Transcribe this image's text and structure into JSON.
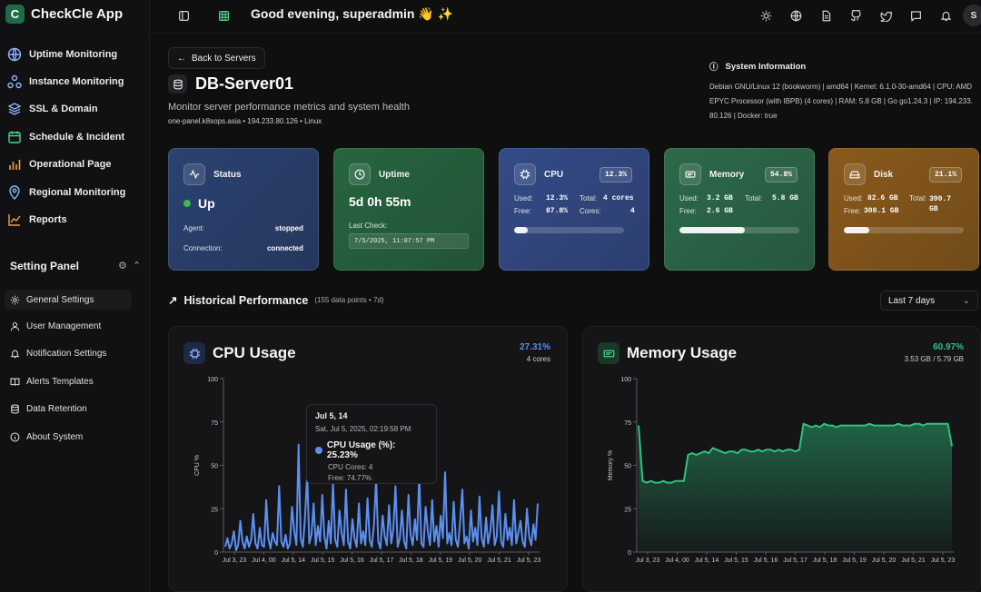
{
  "app": {
    "name": "CheckCle App",
    "logo_letter": "C"
  },
  "sidebar": {
    "items": [
      {
        "label": "Uptime Monitoring",
        "icon": "globe-icon"
      },
      {
        "label": "Instance Monitoring",
        "icon": "network-icon"
      },
      {
        "label": "SSL & Domain",
        "icon": "layers-icon"
      },
      {
        "label": "Schedule & Incident",
        "icon": "calendar-icon"
      },
      {
        "label": "Operational Page",
        "icon": "bar-chart-icon"
      },
      {
        "label": "Regional Monitoring",
        "icon": "map-pin-icon"
      },
      {
        "label": "Reports",
        "icon": "line-chart-icon"
      }
    ],
    "settings_title": "Setting Panel",
    "settings": [
      {
        "label": "General Settings",
        "icon": "gear-icon"
      },
      {
        "label": "User Management",
        "icon": "user-icon"
      },
      {
        "label": "Notification Settings",
        "icon": "bell-icon"
      },
      {
        "label": "Alerts Templates",
        "icon": "book-icon"
      },
      {
        "label": "Data Retention",
        "icon": "database-icon"
      },
      {
        "label": "About System",
        "icon": "info-icon"
      }
    ]
  },
  "header": {
    "greeting": "Good evening, superadmin 👋 ✨",
    "avatar_letter": "S"
  },
  "server": {
    "back_label": "Back to Servers",
    "name": "DB-Server01",
    "description": "Monitor server performance metrics and system health",
    "meta": "one-panel.k8sops.asia • 194.233.80.126 • Linux"
  },
  "system_info": {
    "title": "System Information",
    "text": "Debian GNU/Linux 12 (bookworm) | amd64 | Kernel: 6.1.0-30-amd64 | CPU: AMD EPYC Processor (with IBPB) (4 cores) | RAM: 5.8 GB | Go go1.24.3 | IP: 194.233.80.126 | Docker: true"
  },
  "cards": {
    "status": {
      "title": "Status",
      "value": "Up",
      "agent_label": "Agent:",
      "agent_value": "stopped",
      "conn_label": "Connection:",
      "conn_value": "connected"
    },
    "uptime": {
      "title": "Uptime",
      "value": "5d 0h 55m",
      "last_check_label": "Last Check:",
      "last_check_value": "7/5/2025, 11:07:57 PM"
    },
    "cpu": {
      "title": "CPU",
      "pill": "12.3%",
      "used_label": "Used:",
      "used_value": "12.3%",
      "total_label": "Total:",
      "total_value": "4 cores",
      "free_label": "Free:",
      "free_value": "87.8%",
      "cores_label": "Cores:",
      "cores_value": "4",
      "progress": 12.3
    },
    "memory": {
      "title": "Memory",
      "pill": "54.8%",
      "used_label": "Used:",
      "used_value": "3.2 GB",
      "total_label": "Total:",
      "total_value": "5.8 GB",
      "free_label": "Free:",
      "free_value": "2.6 GB",
      "progress": 54.8
    },
    "disk": {
      "title": "Disk",
      "pill": "21.1%",
      "used_label": "Used:",
      "used_value": "82.6 GB",
      "total_label": "Total:",
      "total_value": "390.7 GB",
      "free_label": "Free:",
      "free_value": "308.1 GB",
      "progress": 21.1
    }
  },
  "historical": {
    "title": "Historical Performance",
    "subtitle": "(155 data points • 7d)",
    "range": "Last 7 days"
  },
  "colors": {
    "status_bg": "#2b4271",
    "uptime_bg": "#276540",
    "cpu_bg": "#344b87",
    "memory_bg": "#2d6a4a",
    "disk_bg": "#8a5a1c",
    "cpu_line": "#5b8ff0",
    "mem_line": "#2ec27e",
    "up_dot": "#3fb950"
  },
  "cpu_panel": {
    "title": "CPU Usage",
    "value": "27.31%",
    "sub": "4 cores",
    "tooltip": {
      "title": "Jul 5, 14",
      "time": "Sat, Jul 5, 2025, 02:19:58 PM",
      "series": "CPU Usage (%): 25.23%",
      "extra1": "CPU Cores: 4",
      "extra2": "Free: 74.77%"
    }
  },
  "mem_panel": {
    "title": "Memory Usage",
    "value": "60.97%",
    "sub": "3.53 GB / 5.79 GB"
  },
  "chart_data": [
    {
      "type": "line",
      "title": "CPU Usage",
      "ylabel": "CPU %",
      "ylim": [
        0,
        100
      ],
      "yticks": [
        "0",
        "25",
        "50",
        "75",
        "100"
      ],
      "xticks": [
        "Jul 3, 23",
        "Jul 4, 00",
        "Jul 5, 14",
        "Jul 5, 15",
        "Jul 5, 16",
        "Jul 5, 17",
        "Jul 5, 18",
        "Jul 5, 19",
        "Jul 5, 20",
        "Jul 5, 21",
        "Jul 5, 23"
      ],
      "series": [
        {
          "values": [
            3,
            8,
            2,
            5,
            12,
            1,
            4,
            18,
            6,
            2,
            9,
            3,
            7,
            22,
            5,
            2,
            14,
            4,
            3,
            30,
            8,
            2,
            11,
            6,
            4,
            38,
            6,
            3,
            10,
            2,
            5,
            26,
            12,
            4,
            62,
            8,
            3,
            20,
            45,
            5,
            10,
            28,
            4,
            15,
            6,
            33,
            9,
            2,
            18,
            5,
            40,
            7,
            3,
            24,
            11,
            4,
            36,
            6,
            2,
            19,
            8,
            3,
            28,
            5,
            12,
            4,
            31,
            7,
            3,
            16,
            42,
            6,
            2,
            21,
            9,
            4,
            27,
            5,
            13,
            38,
            3,
            8,
            24,
            6,
            2,
            33,
            10,
            4,
            19,
            7,
            44,
            5,
            3,
            26,
            12,
            4,
            30,
            6,
            15,
            3,
            21,
            8,
            46,
            5,
            11,
            4,
            29,
            7,
            3,
            18,
            36,
            5,
            9,
            2,
            24,
            6,
            14,
            4,
            32,
            8,
            3,
            20,
            5,
            12,
            27,
            4,
            9,
            35,
            6,
            3,
            22,
            7,
            14,
            4,
            30,
            5,
            11,
            18,
            6,
            3,
            25,
            9,
            4,
            16,
            7,
            28
          ]
        }
      ]
    },
    {
      "type": "area",
      "title": "Memory Usage",
      "ylabel": "Memory %",
      "ylim": [
        0,
        100
      ],
      "yticks": [
        "0",
        "25",
        "50",
        "75",
        "100"
      ],
      "xticks": [
        "Jul 3, 23",
        "Jul 4, 00",
        "Jul 5, 14",
        "Jul 5, 15",
        "Jul 5, 16",
        "Jul 5, 17",
        "Jul 5, 18",
        "Jul 5, 19",
        "Jul 5, 20",
        "Jul 5, 21",
        "Jul 5, 23"
      ],
      "series": [
        {
          "values": [
            73,
            41,
            40,
            41,
            40,
            40,
            41,
            40,
            40,
            41,
            41,
            41,
            56,
            57,
            56,
            57,
            58,
            57,
            60,
            59,
            58,
            57,
            58,
            58,
            57,
            59,
            59,
            58,
            58,
            59,
            58,
            59,
            59,
            58,
            59,
            58,
            59,
            59,
            58,
            59,
            74,
            73,
            72,
            73,
            72,
            74,
            73,
            73,
            72,
            73,
            73,
            73,
            73,
            73,
            73,
            73,
            74,
            73,
            73,
            73,
            73,
            73,
            73,
            74,
            73,
            73,
            73,
            74,
            74,
            73,
            74,
            74,
            74,
            74,
            74,
            74,
            61
          ]
        }
      ]
    }
  ]
}
